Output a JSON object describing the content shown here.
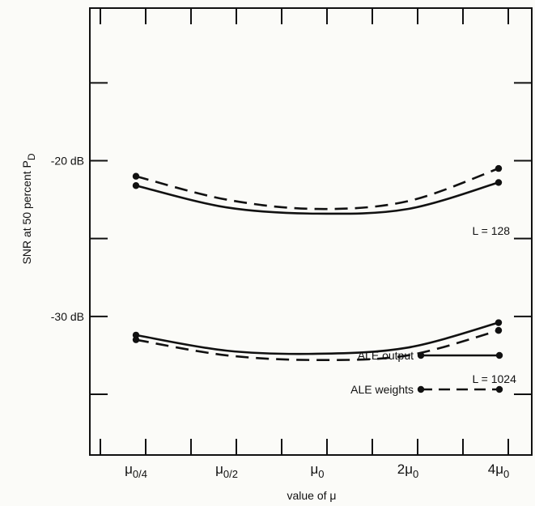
{
  "chart_data": {
    "type": "line",
    "title": "",
    "xlabel": "value of μ",
    "ylabel": "SNR at 50 percent P_D",
    "x_categories": [
      {
        "base": "μ",
        "sub": "0/4"
      },
      {
        "base": "μ",
        "sub": "0/2"
      },
      {
        "base": "μ",
        "sub": "0"
      },
      {
        "base": "2μ",
        "sub": "0"
      },
      {
        "base": "4μ",
        "sub": "0"
      }
    ],
    "x_scale": "log",
    "y_tick_labels": [
      "-20 dB",
      "-30 dB"
    ],
    "y_tick_values": [
      -20,
      -30
    ],
    "ylim": [
      -38.9,
      -10.2
    ],
    "grid": false,
    "series": [
      {
        "name": "ALE output",
        "group": "L = 128",
        "style": "solid",
        "markers": "endpoints",
        "x": [
          0.25,
          0.5,
          1,
          2,
          4
        ],
        "y": [
          -21.6,
          -23.0,
          -23.4,
          -23.1,
          -21.4
        ]
      },
      {
        "name": "ALE weights",
        "group": "L = 128",
        "style": "dashed",
        "markers": "endpoints",
        "x": [
          0.25,
          0.5,
          1,
          2,
          4
        ],
        "y": [
          -21.0,
          -22.5,
          -23.1,
          -22.6,
          -20.5
        ]
      },
      {
        "name": "ALE output",
        "group": "L = 1024",
        "style": "solid",
        "markers": "endpoints",
        "x": [
          0.25,
          0.5,
          1,
          2,
          4
        ],
        "y": [
          -31.2,
          -32.2,
          -32.4,
          -32.0,
          -30.4
        ]
      },
      {
        "name": "ALE weights",
        "group": "L = 1024",
        "style": "dashed",
        "markers": "endpoints",
        "x": [
          0.25,
          0.5,
          1,
          2,
          4
        ],
        "y": [
          -31.5,
          -32.5,
          -32.8,
          -32.5,
          -30.9
        ]
      }
    ],
    "annotations": [
      {
        "text": "L = 128",
        "anchor_x": 3.0,
        "anchor_y": -24.5
      },
      {
        "text": "L = 1024",
        "anchor_x": 3.0,
        "anchor_y": -34.0
      }
    ],
    "legend": {
      "position": "bottom-right",
      "items": [
        {
          "label": "ALE output",
          "style": "solid"
        },
        {
          "label": "ALE weights",
          "style": "dashed"
        }
      ]
    },
    "colors": {
      "line": "#111111",
      "background": "#fbfbf8"
    }
  }
}
